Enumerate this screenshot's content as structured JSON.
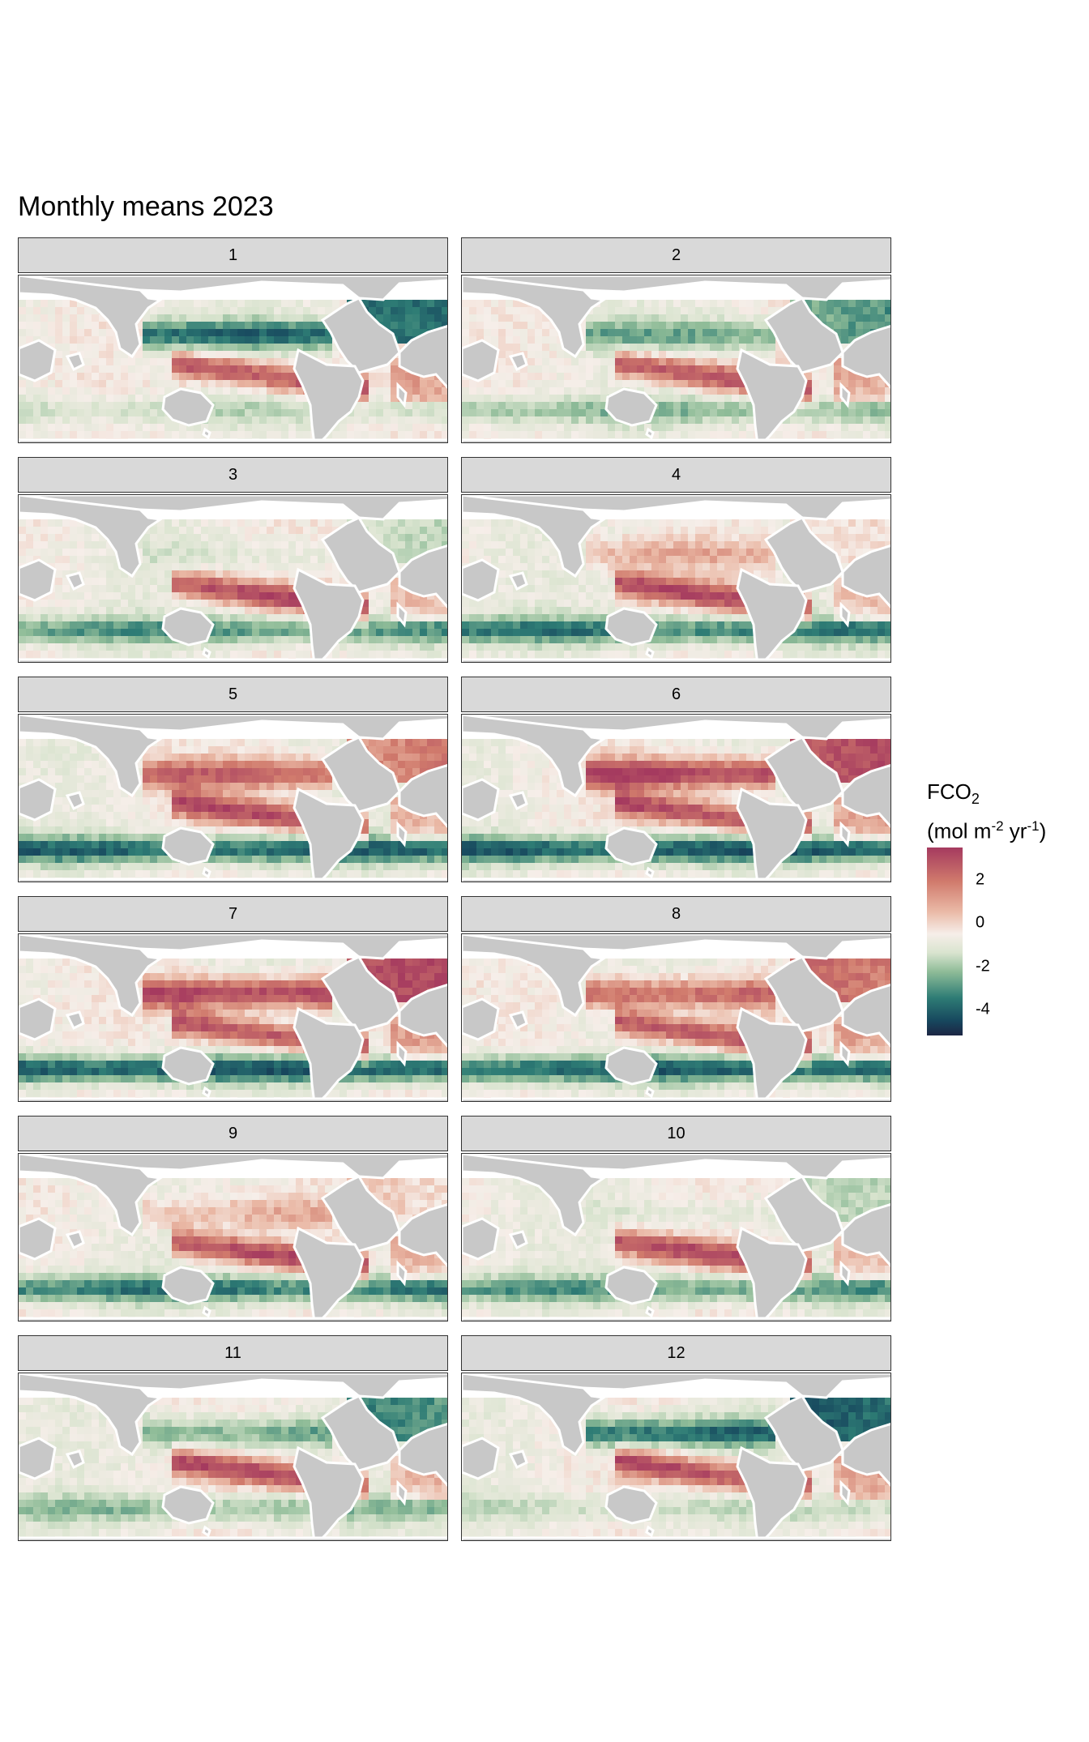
{
  "title": "Monthly means 2023",
  "panels": [
    "1",
    "2",
    "3",
    "4",
    "5",
    "6",
    "7",
    "8",
    "9",
    "10",
    "11",
    "12"
  ],
  "legend": {
    "title_main": "FCO",
    "title_sub": "2",
    "unit_prefix": "(mol m",
    "unit_exp1": "-2",
    "unit_mid": " yr",
    "unit_exp2": "-1",
    "unit_suffix": ")",
    "ticks": [
      {
        "label": "2",
        "value": 2
      },
      {
        "label": "0",
        "value": 0
      },
      {
        "label": "-2",
        "value": -2
      },
      {
        "label": "-4",
        "value": -4
      }
    ],
    "range": [
      -5.2,
      3.5
    ]
  },
  "colors": {
    "land": "#c8c8c8",
    "strip": "#d9d9d9",
    "positive": "#a53a5f",
    "neutral": "#f6eee9",
    "negative": "#1c2544"
  }
}
